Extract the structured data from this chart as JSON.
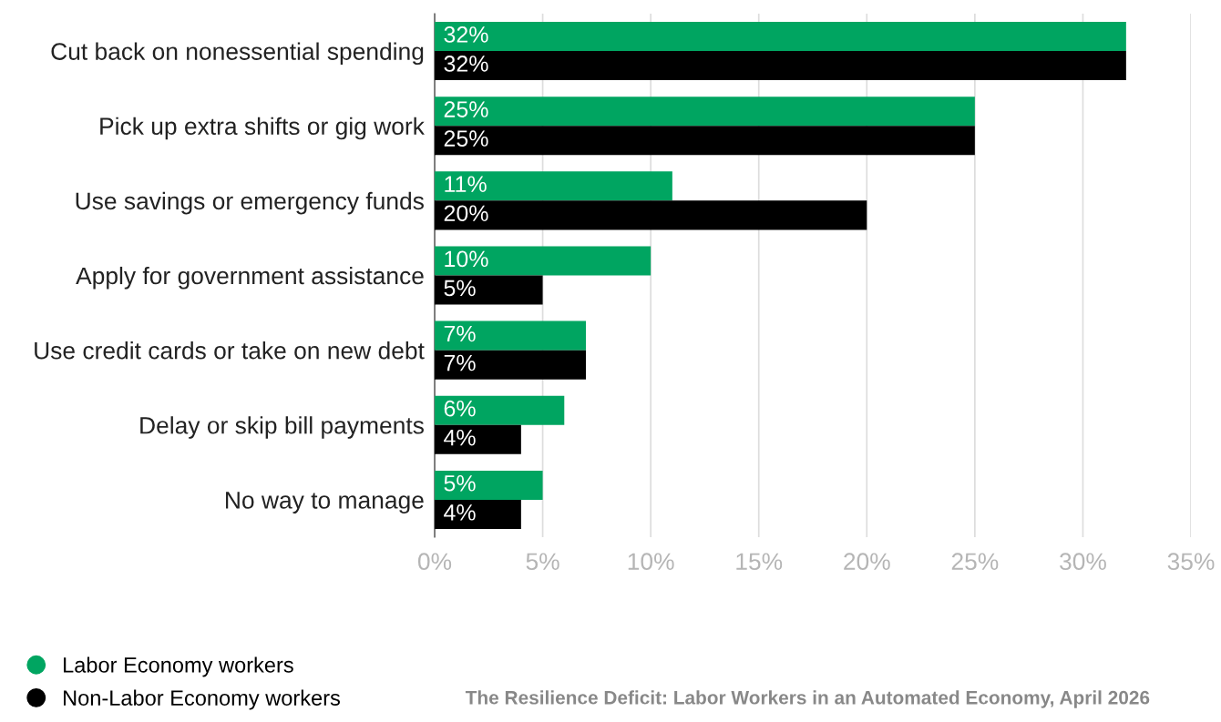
{
  "chart_data": {
    "type": "bar",
    "orientation": "horizontal",
    "categories": [
      "Cut back on nonessential spending",
      "Pick up extra shifts or gig work",
      "Use savings or emergency funds",
      "Apply for government assistance",
      "Use credit cards or take on new debt",
      "Delay or skip bill payments",
      "No way to manage"
    ],
    "series": [
      {
        "name": "Labor Economy workers",
        "color": "#00a561",
        "values": [
          32,
          25,
          11,
          10,
          7,
          6,
          5
        ],
        "value_labels": [
          "32%",
          "25%",
          "11%",
          "10%",
          "7%",
          "6%",
          "5%"
        ]
      },
      {
        "name": "Non-Labor Economy workers",
        "color": "#000000",
        "values": [
          32,
          25,
          20,
          5,
          7,
          4,
          4
        ],
        "value_labels": [
          "32%",
          "25%",
          "20%",
          "5%",
          "7%",
          "4%",
          "4%"
        ]
      }
    ],
    "xlim": [
      0,
      35
    ],
    "xticks": [
      {
        "value": 0,
        "label": "0%"
      },
      {
        "value": 5,
        "label": "5%"
      },
      {
        "value": 10,
        "label": "10%"
      },
      {
        "value": 15,
        "label": "15%"
      },
      {
        "value": 20,
        "label": "20%"
      },
      {
        "value": 25,
        "label": "25%"
      },
      {
        "value": 30,
        "label": "30%"
      },
      {
        "value": 35,
        "label": "35%"
      }
    ],
    "grid": "x",
    "legend": "bottom left",
    "annotations": [
      "The Resilience Deficit: Labor Workers in an Automated Economy, April 2026"
    ]
  }
}
